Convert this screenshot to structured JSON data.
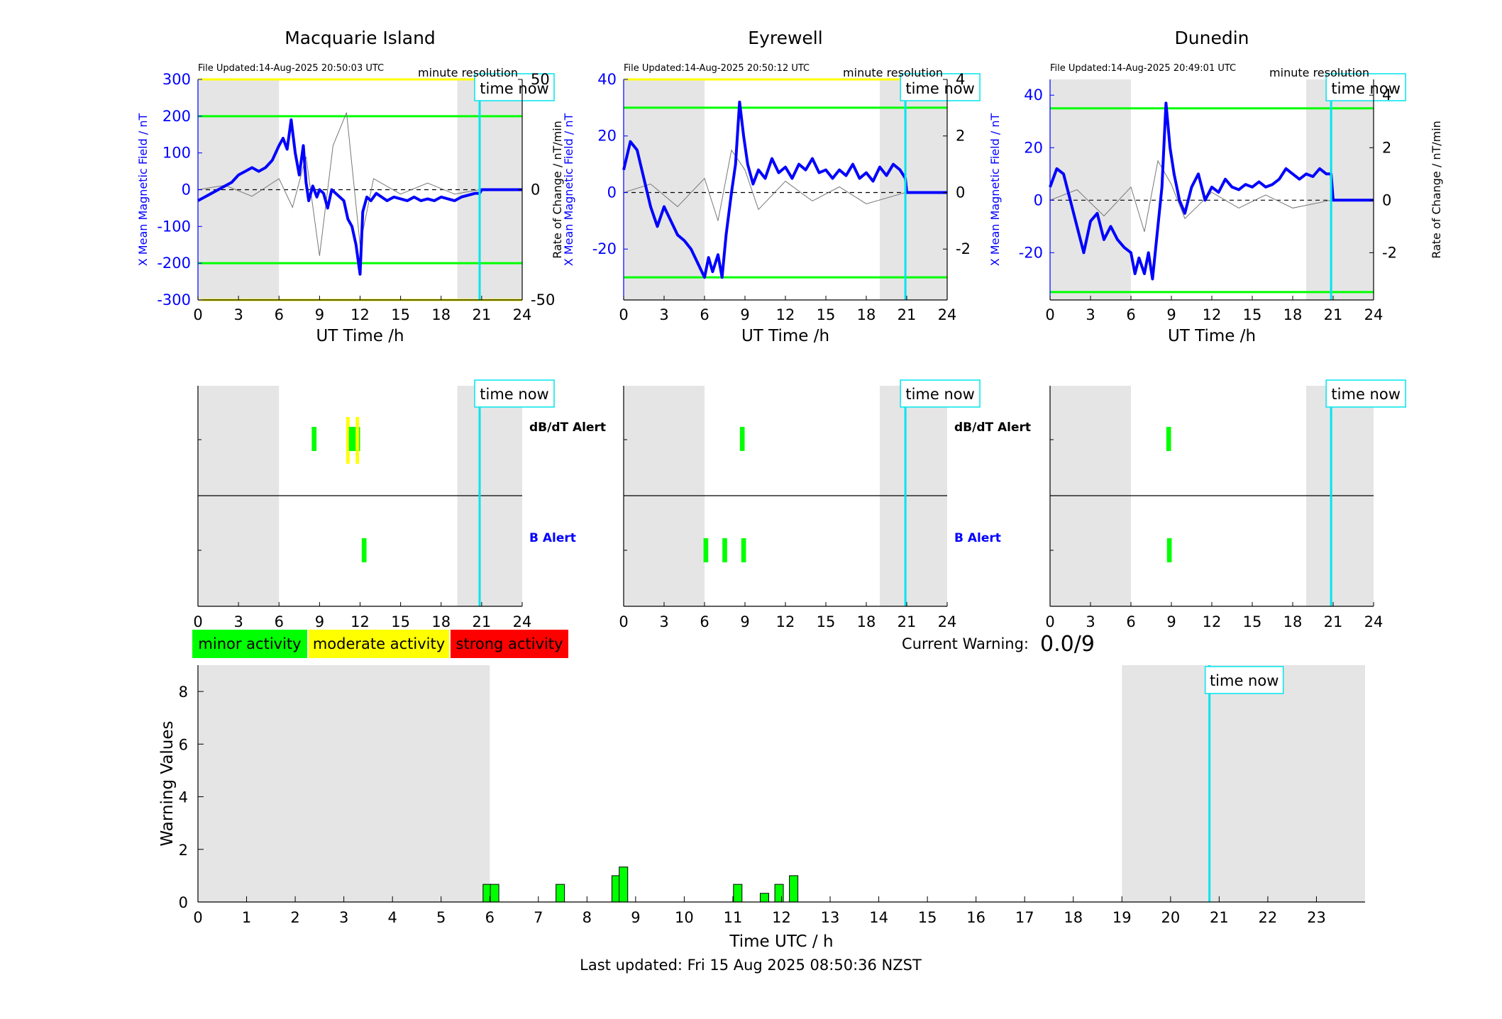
{
  "colors": {
    "blue": "#0000ff",
    "gray_shade": "#e5e5e5",
    "green": "#00ff00",
    "yellow": "#ffff00",
    "red": "#ff0000",
    "cyan": "#00e5ee",
    "dark_line": "#1a1a1a"
  },
  "texts": {
    "time_now": "time now",
    "minute_resolution": "minute resolution",
    "x_label_top": "UT Time /h",
    "y_label_left": "X Mean Magnetic Field / nT",
    "y_label_right": "Rate of Change / nT/min",
    "dbdt_alert": "dB/dT Alert",
    "b_alert": "B Alert",
    "current_warning_label": "Current Warning:",
    "current_warning_value": "0.0/9",
    "legend_minor": "minor activity",
    "legend_moderate": "moderate activity",
    "legend_strong": "strong activity",
    "bottom_xlabel": "Time UTC / h",
    "bottom_ylabel": "Warning Values",
    "last_updated": "Last updated: Fri 15 Aug 2025 08:50:36 NZST"
  },
  "chart_data": [
    {
      "type": "line",
      "station": "Macquarie Island",
      "title": "Macquarie Island",
      "file_updated": "File Updated:14-Aug-2025 20:50:03 UTC",
      "xlabel": "UT Time /h",
      "ylabel": "X Mean Magnetic Field / nT",
      "ylabel_right": "",
      "xlim": [
        0,
        24
      ],
      "ylim": [
        -300,
        300
      ],
      "ylim_right": [
        -50,
        50
      ],
      "xticks": [
        0,
        3,
        6,
        9,
        12,
        15,
        18,
        21,
        24
      ],
      "yticks": [
        -300,
        -200,
        -100,
        0,
        100,
        200,
        300
      ],
      "yticks_right": [
        -50,
        0,
        50
      ],
      "threshold_lines": [
        {
          "value": 300,
          "color": "yellow"
        },
        {
          "value": 200,
          "color": "green"
        },
        {
          "value": -200,
          "color": "green"
        },
        {
          "value": -300,
          "color": "yellow"
        }
      ],
      "shaded_ranges": [
        [
          0,
          6
        ],
        [
          19.2,
          24
        ]
      ],
      "time_now": 20.85,
      "series": [
        {
          "color": "blue",
          "x": [
            0,
            0.5,
            1,
            1.5,
            2,
            2.5,
            3,
            3.5,
            4,
            4.5,
            5,
            5.5,
            6,
            6.3,
            6.6,
            6.9,
            7.2,
            7.5,
            7.8,
            8,
            8.2,
            8.5,
            8.8,
            9,
            9.3,
            9.6,
            9.9,
            10.2,
            10.5,
            10.8,
            11.1,
            11.4,
            11.7,
            12,
            12.2,
            12.5,
            12.8,
            13.2,
            13.6,
            14,
            14.5,
            15,
            15.5,
            16,
            16.5,
            17,
            17.5,
            18,
            18.5,
            19,
            19.5,
            20,
            20.5,
            20.85,
            21,
            22,
            23,
            24
          ],
          "y": [
            -30,
            -20,
            -10,
            0,
            10,
            20,
            40,
            50,
            60,
            50,
            60,
            80,
            120,
            140,
            110,
            190,
            100,
            40,
            120,
            20,
            -30,
            10,
            -20,
            0,
            -10,
            -50,
            0,
            -10,
            -20,
            -30,
            -80,
            -100,
            -150,
            -230,
            -60,
            -20,
            -30,
            -10,
            -20,
            -30,
            -20,
            -25,
            -30,
            -20,
            -30,
            -25,
            -30,
            -20,
            -25,
            -30,
            -20,
            -15,
            -10,
            -10,
            0,
            0,
            0,
            0
          ]
        },
        {
          "color": "gray",
          "x": [
            0,
            2,
            4,
            6,
            7,
            8,
            9,
            10,
            11,
            12,
            13,
            15,
            17,
            19,
            20.85
          ],
          "y": [
            0,
            2,
            -3,
            5,
            -8,
            15,
            -30,
            20,
            35,
            -25,
            5,
            -2,
            3,
            -2,
            0
          ]
        }
      ]
    },
    {
      "type": "line",
      "station": "Eyrewell",
      "title": "Eyrewell",
      "file_updated": "File Updated:14-Aug-2025 20:50:12 UTC",
      "xlabel": "UT Time /h",
      "ylabel": "X Mean Magnetic Field / nT",
      "ylabel_right": "Rate of Change / nT/min",
      "xlim": [
        0,
        24
      ],
      "ylim": [
        -38,
        40
      ],
      "ylim_right": [
        -3.8,
        4
      ],
      "xticks": [
        0,
        3,
        6,
        9,
        12,
        15,
        18,
        21,
        24
      ],
      "yticks": [
        -20,
        0,
        20,
        40
      ],
      "yticks_right": [
        -2,
        0,
        2,
        4
      ],
      "threshold_lines": [
        {
          "value": 40,
          "color": "yellow"
        },
        {
          "value": 30,
          "color": "green"
        },
        {
          "value": -30,
          "color": "green"
        }
      ],
      "shaded_ranges": [
        [
          0,
          6
        ],
        [
          19,
          24
        ]
      ],
      "time_now": 20.9,
      "series": [
        {
          "color": "blue",
          "x": [
            0,
            0.5,
            1,
            1.5,
            2,
            2.5,
            3,
            3.5,
            4,
            4.5,
            5,
            5.5,
            6,
            6.3,
            6.6,
            7,
            7.3,
            7.6,
            8,
            8.3,
            8.6,
            8.9,
            9.2,
            9.6,
            10,
            10.5,
            11,
            11.5,
            12,
            12.5,
            13,
            13.5,
            14,
            14.5,
            15,
            15.5,
            16,
            16.5,
            17,
            17.5,
            18,
            18.5,
            19,
            19.5,
            20,
            20.5,
            20.9,
            21,
            22,
            23,
            24
          ],
          "y": [
            8,
            18,
            15,
            5,
            -5,
            -12,
            -5,
            -10,
            -15,
            -17,
            -20,
            -25,
            -30,
            -23,
            -28,
            -22,
            -30,
            -15,
            0,
            10,
            32,
            20,
            10,
            3,
            8,
            5,
            12,
            7,
            9,
            5,
            10,
            8,
            12,
            7,
            8,
            5,
            8,
            6,
            10,
            5,
            7,
            4,
            9,
            6,
            10,
            8,
            5,
            0,
            0,
            0,
            0
          ]
        },
        {
          "color": "gray",
          "x": [
            0,
            2,
            4,
            6,
            7,
            8,
            9,
            10,
            12,
            14,
            16,
            18,
            20.9
          ],
          "y": [
            0,
            0.3,
            -0.5,
            0.5,
            -1,
            1.5,
            0.8,
            -0.6,
            0.4,
            -0.3,
            0.2,
            -0.4,
            0
          ]
        }
      ]
    },
    {
      "type": "line",
      "station": "Dunedin",
      "title": "Dunedin",
      "file_updated": "File Updated:14-Aug-2025 20:49:01 UTC",
      "xlabel": "UT Time /h",
      "ylabel": "X Mean Magnetic Field / nT",
      "ylabel_right": "Rate of Change / nT/min",
      "xlim": [
        0,
        24
      ],
      "ylim": [
        -38,
        46
      ],
      "ylim_right": [
        -3.8,
        4.6
      ],
      "xticks": [
        0,
        3,
        6,
        9,
        12,
        15,
        18,
        21,
        24
      ],
      "yticks": [
        -20,
        0,
        20,
        40
      ],
      "yticks_right": [
        -2,
        0,
        2,
        4
      ],
      "threshold_lines": [
        {
          "value": 35,
          "color": "green"
        },
        {
          "value": -35,
          "color": "green"
        }
      ],
      "shaded_ranges": [
        [
          0,
          6
        ],
        [
          19,
          24
        ]
      ],
      "time_now": 20.85,
      "series": [
        {
          "color": "blue",
          "x": [
            0,
            0.5,
            1,
            1.5,
            2,
            2.5,
            3,
            3.5,
            4,
            4.5,
            5,
            5.5,
            6,
            6.3,
            6.6,
            7,
            7.3,
            7.6,
            8,
            8.3,
            8.6,
            8.9,
            9.2,
            9.6,
            10,
            10.5,
            11,
            11.5,
            12,
            12.5,
            13,
            13.5,
            14,
            14.5,
            15,
            15.5,
            16,
            16.5,
            17,
            17.5,
            18,
            18.5,
            19,
            19.5,
            20,
            20.5,
            20.85,
            21,
            22,
            23,
            24
          ],
          "y": [
            5,
            12,
            10,
            0,
            -10,
            -20,
            -8,
            -5,
            -15,
            -10,
            -15,
            -18,
            -20,
            -28,
            -22,
            -28,
            -20,
            -30,
            -10,
            5,
            37,
            20,
            10,
            0,
            -5,
            5,
            10,
            0,
            5,
            3,
            8,
            5,
            4,
            6,
            5,
            7,
            5,
            6,
            8,
            12,
            10,
            8,
            10,
            9,
            12,
            10,
            10,
            0,
            0,
            0,
            0
          ]
        },
        {
          "color": "gray",
          "x": [
            0,
            2,
            4,
            6,
            7,
            8,
            9,
            10,
            12,
            14,
            16,
            18,
            20.85
          ],
          "y": [
            0,
            0.4,
            -0.6,
            0.5,
            -1.2,
            1.5,
            0.6,
            -0.7,
            0.3,
            -0.3,
            0.2,
            -0.3,
            0
          ]
        }
      ]
    },
    {
      "type": "bar",
      "title": "",
      "xlabel": "Time UTC / h",
      "ylabel": "Warning Values",
      "xlim": [
        0,
        24
      ],
      "ylim": [
        0,
        9
      ],
      "xticks": [
        0,
        1,
        2,
        3,
        4,
        5,
        6,
        7,
        8,
        9,
        10,
        11,
        12,
        13,
        14,
        15,
        16,
        17,
        18,
        19,
        20,
        21,
        22,
        23
      ],
      "yticks": [
        0,
        2,
        4,
        6,
        8
      ],
      "shaded_ranges": [
        [
          0,
          6
        ],
        [
          19,
          24
        ]
      ],
      "time_now": 20.8,
      "x": [
        5.95,
        6.1,
        7.45,
        8.6,
        8.75,
        11.1,
        11.65,
        11.95,
        12.25
      ],
      "values": [
        0.67,
        0.67,
        0.67,
        1.0,
        1.33,
        0.67,
        0.33,
        0.67,
        1.0
      ]
    }
  ],
  "alert_data": [
    {
      "station": "Macquarie Island",
      "shaded_ranges": [
        [
          0,
          6
        ],
        [
          19.2,
          24
        ]
      ],
      "time_now": 20.85,
      "dbdt": [
        {
          "t": 8.6,
          "w": 0.35,
          "color": "green"
        },
        {
          "t": 11.1,
          "w": 0.25,
          "color": "yellow"
        },
        {
          "t": 11.3,
          "w": 0.25,
          "color": "green"
        },
        {
          "t": 11.6,
          "w": 0.8,
          "color": "green"
        },
        {
          "t": 11.8,
          "w": 0.25,
          "color": "yellow"
        }
      ],
      "b": [
        {
          "t": 12.3,
          "w": 0.35,
          "color": "green"
        }
      ]
    },
    {
      "station": "Eyrewell",
      "shaded_ranges": [
        [
          0,
          6
        ],
        [
          19,
          24
        ]
      ],
      "time_now": 20.9,
      "dbdt": [
        {
          "t": 8.8,
          "w": 0.35,
          "color": "green"
        }
      ],
      "b": [
        {
          "t": 6.1,
          "w": 0.35,
          "color": "green"
        },
        {
          "t": 7.5,
          "w": 0.35,
          "color": "green"
        },
        {
          "t": 8.9,
          "w": 0.35,
          "color": "green"
        }
      ]
    },
    {
      "station": "Dunedin",
      "shaded_ranges": [
        [
          0,
          6
        ],
        [
          19,
          24
        ]
      ],
      "time_now": 20.85,
      "dbdt": [
        {
          "t": 8.8,
          "w": 0.35,
          "color": "green"
        }
      ],
      "b": [
        {
          "t": 8.85,
          "w": 0.35,
          "color": "green"
        }
      ]
    }
  ]
}
